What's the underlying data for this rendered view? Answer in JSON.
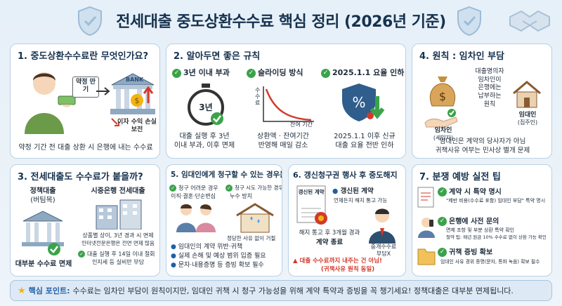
{
  "title": "전세대출 중도상환수수료 핵심 정리 (2026년 기준)",
  "colors": {
    "primary": "#16324f",
    "accent": "#1f5fa6",
    "green": "#3aa34a",
    "red": "#d23a2a",
    "gold": "#f2b313"
  },
  "card1": {
    "title": "1. 중도상환수수료란 무엇인가요?",
    "tag": "약정 만기",
    "bank": "BANK",
    "loss": "이자 수익 손실 보전",
    "caption": "약정 기간 전 대출 상환 시 은행에 내는 수수료"
  },
  "card2": {
    "title": "2. 알아두면 좋은 규칙",
    "rule1": "3년 이내 부과",
    "rule2": "슬라이딩 방식",
    "rule3": "2025.1.1 요율 인하",
    "clock_label": "3년",
    "ylabel": "수수료",
    "xlabel": "잔여 기간",
    "desc1a": "대출 실행 후 3년",
    "desc1b": "이내 부과, 이후 면제",
    "desc2a": "상환액 · 잔여기간",
    "desc2b": "반영해 매일 감소",
    "desc3a": "2025.1.1 이후 신규",
    "desc3b": "대출 요율 전반 인하"
  },
  "card4": {
    "title": "4. 원칙 : 임차인 부담",
    "middle": [
      "대출명의자",
      "임차인이",
      "은행에는",
      "납부하는",
      "원칙"
    ],
    "tenant": "임차인",
    "tenant_sub": "(세입자)",
    "landlord": "임대인",
    "landlord_sub": "(집주인)",
    "note1": "임대인은 계약의 당사자가 아님",
    "note2": "귀책사유 여부는 민사상 별개 문제"
  },
  "card3": {
    "title": "3. 전세대출도 수수료가 붙을까?",
    "left_title": "정책대출",
    "left_sub": "(버팀목)",
    "left_caption": "대부분 수수료 면제",
    "right_title": "시중은행 전세대출",
    "right_note1": "상품별 상이, 3년 경과 시 면제",
    "right_note2": "인터넷전문은행은 전면 면제 많음",
    "right_note3": "대출 실행 후 14일 이내 철회",
    "right_note4": "인지세 등 실비만 부담"
  },
  "card5": {
    "title": "5. 임대인에게 청구할 수 있는 경우는?",
    "hard": "청구 어려운 경우",
    "hard_sub": "이직·결혼·단순변심",
    "possible": "청구 시도 가능한 경우",
    "possible_sub": "누수 방치",
    "reason": "정당한 사유 없이 거절",
    "b1": "임대인의 계약 위반·귀책",
    "b2": "실제 손해 및 예상 범위 입증 필요",
    "b3": "문자·내용증명 등 증빙 확보 필수"
  },
  "card6": {
    "title": "6. 갱신청구권 행사 후 중도해지",
    "doc": "갱신된 계약",
    "point": "갱신된 계약",
    "point_sub": "언제든지 해지 통고 가능",
    "notice1": "해지 통고 후 3개월 경과",
    "notice2": "계약 종료",
    "fee": "중개수수료",
    "fee_sub": "부담X",
    "warn1": "대출 수수료까지 내주는 건 아님!",
    "warn2": "(귀책사유 원칙 동일)"
  },
  "card7": {
    "title": "7. 분쟁 예방 실전 팁",
    "t1": "계약 시 특약 명시",
    "t1_sub": "\"제반 비용(수수료 포함) 임대인 부담\" 특약 명시",
    "t2": "은행에 사전 문의",
    "t2_sub1": "면제 조항 및 부분 상환 특약 확인",
    "t2_sub2": "절약 팁: 매년 원금 10% 수수료 없이 상환 가능 확인",
    "t3": "귀책 증빙 확보",
    "t3_sub": "임대인 사유 경위 증명(문자, 통화 녹음) 확보 필수"
  },
  "bottom": {
    "key": "핵심 포인트:",
    "text": "수수료는 임차인 부담이 원칙이지만, 임대인 귀책 시 청구 가능성을 위해 계약 특약과 증빙을 꼭 챙기세요! 정책대출은 대부분 면제됩니다."
  }
}
